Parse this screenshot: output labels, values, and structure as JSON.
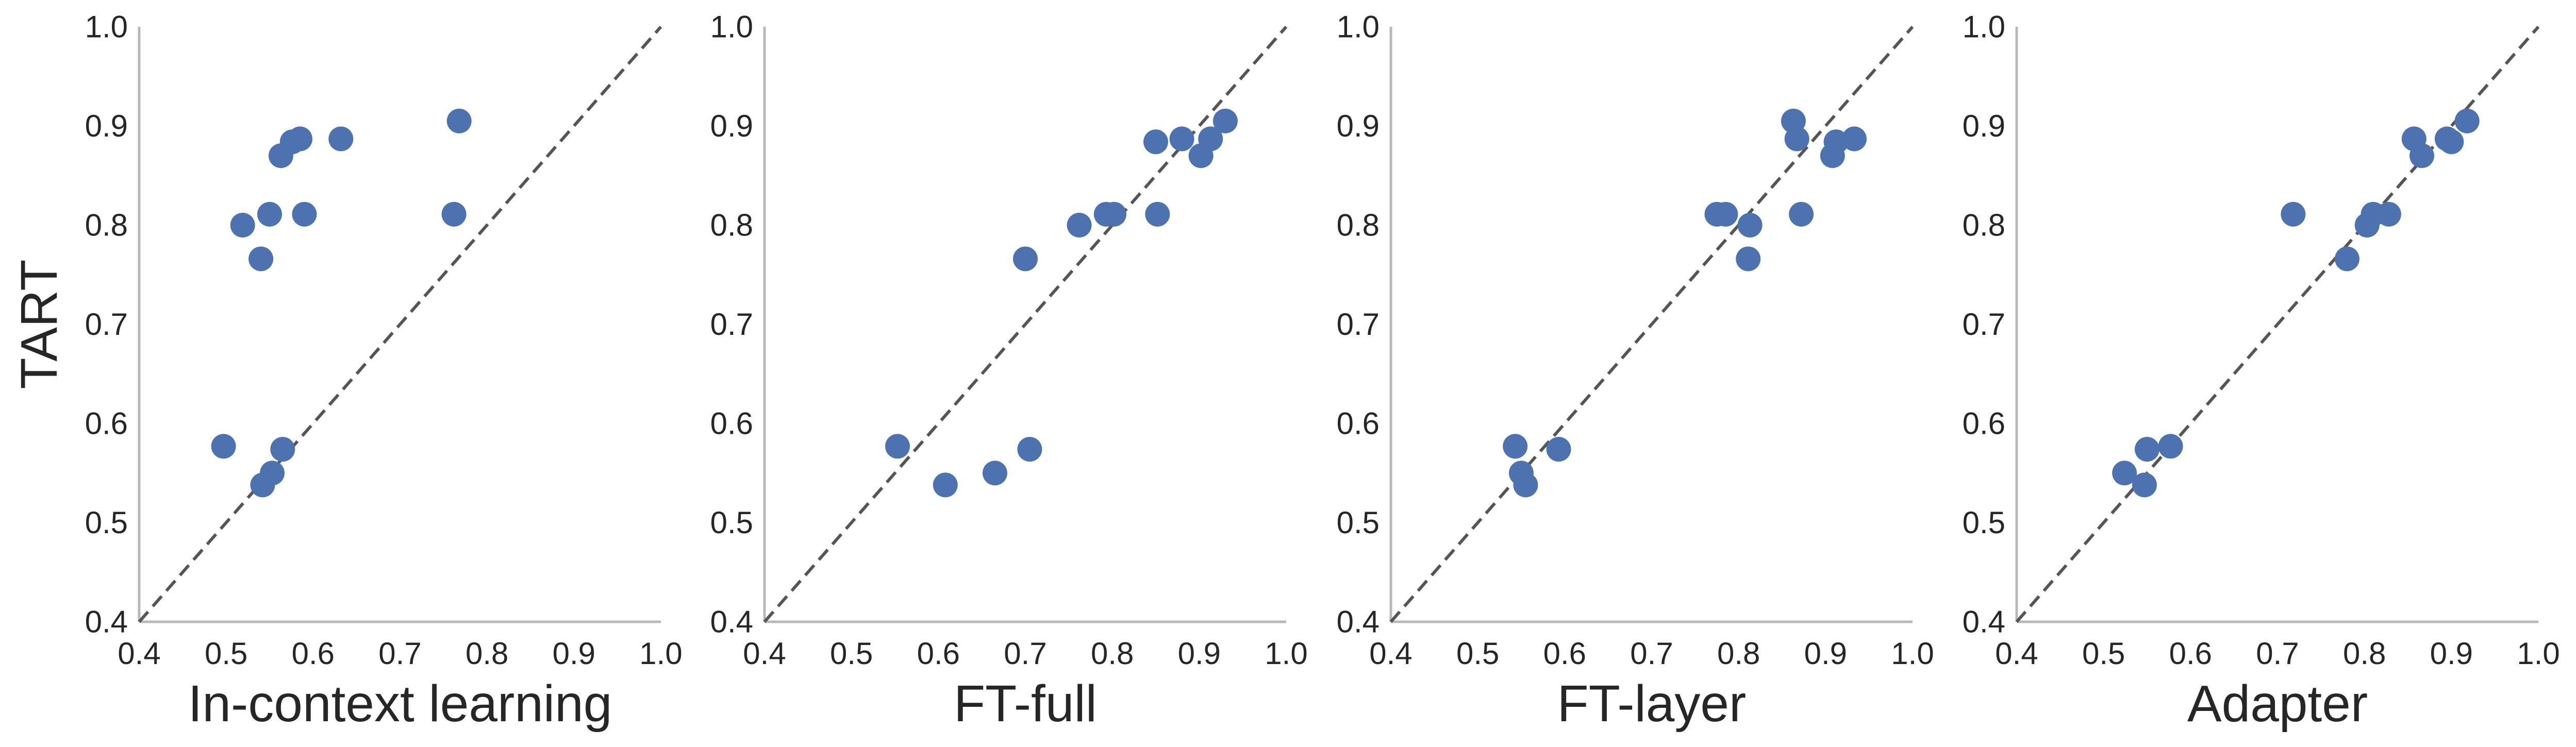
{
  "chart_data": [
    {
      "type": "scatter",
      "xlabel": "In-context learning",
      "ylabel": "TART",
      "xlim": [
        0.4,
        1.0
      ],
      "ylim": [
        0.4,
        1.0
      ],
      "xticks": [
        "0.4",
        "0.5",
        "0.6",
        "0.7",
        "0.8",
        "0.9",
        "1.0"
      ],
      "yticks": [
        "0.4",
        "0.5",
        "0.6",
        "0.7",
        "0.8",
        "0.9",
        "1.0"
      ],
      "reference_line": "y = x (dashed)",
      "grid": false,
      "point_color": "#4c72b0",
      "points": [
        {
          "x": 0.497,
          "y": 0.577
        },
        {
          "x": 0.519,
          "y": 0.8
        },
        {
          "x": 0.54,
          "y": 0.766
        },
        {
          "x": 0.542,
          "y": 0.538
        },
        {
          "x": 0.55,
          "y": 0.811
        },
        {
          "x": 0.553,
          "y": 0.55
        },
        {
          "x": 0.563,
          "y": 0.87
        },
        {
          "x": 0.565,
          "y": 0.574
        },
        {
          "x": 0.576,
          "y": 0.884
        },
        {
          "x": 0.585,
          "y": 0.887
        },
        {
          "x": 0.59,
          "y": 0.811
        },
        {
          "x": 0.632,
          "y": 0.887
        },
        {
          "x": 0.762,
          "y": 0.811
        },
        {
          "x": 0.768,
          "y": 0.905
        }
      ]
    },
    {
      "type": "scatter",
      "xlabel": "FT-full",
      "xlim": [
        0.4,
        1.0
      ],
      "ylim": [
        0.4,
        1.0
      ],
      "xticks": [
        "0.4",
        "0.5",
        "0.6",
        "0.7",
        "0.8",
        "0.9",
        "1.0"
      ],
      "yticks": [
        "0.4",
        "0.5",
        "0.6",
        "0.7",
        "0.8",
        "0.9",
        "1.0"
      ],
      "reference_line": "y = x (dashed)",
      "grid": false,
      "point_color": "#4c72b0",
      "points": [
        {
          "x": 0.553,
          "y": 0.577
        },
        {
          "x": 0.608,
          "y": 0.538
        },
        {
          "x": 0.665,
          "y": 0.55
        },
        {
          "x": 0.7,
          "y": 0.766
        },
        {
          "x": 0.705,
          "y": 0.574
        },
        {
          "x": 0.762,
          "y": 0.8
        },
        {
          "x": 0.793,
          "y": 0.811
        },
        {
          "x": 0.802,
          "y": 0.811
        },
        {
          "x": 0.85,
          "y": 0.884
        },
        {
          "x": 0.852,
          "y": 0.811
        },
        {
          "x": 0.88,
          "y": 0.887
        },
        {
          "x": 0.902,
          "y": 0.87
        },
        {
          "x": 0.913,
          "y": 0.887
        },
        {
          "x": 0.93,
          "y": 0.905
        }
      ]
    },
    {
      "type": "scatter",
      "xlabel": "FT-layer",
      "xlim": [
        0.4,
        1.0
      ],
      "ylim": [
        0.4,
        1.0
      ],
      "xticks": [
        "0.4",
        "0.5",
        "0.6",
        "0.7",
        "0.8",
        "0.9",
        "1.0"
      ],
      "yticks": [
        "0.4",
        "0.5",
        "0.6",
        "0.7",
        "0.8",
        "0.9",
        "1.0"
      ],
      "reference_line": "y = x (dashed)",
      "grid": false,
      "point_color": "#4c72b0",
      "points": [
        {
          "x": 0.543,
          "y": 0.577
        },
        {
          "x": 0.55,
          "y": 0.55
        },
        {
          "x": 0.555,
          "y": 0.538
        },
        {
          "x": 0.593,
          "y": 0.574
        },
        {
          "x": 0.775,
          "y": 0.811
        },
        {
          "x": 0.785,
          "y": 0.811
        },
        {
          "x": 0.811,
          "y": 0.766
        },
        {
          "x": 0.813,
          "y": 0.8
        },
        {
          "x": 0.863,
          "y": 0.905
        },
        {
          "x": 0.867,
          "y": 0.887
        },
        {
          "x": 0.872,
          "y": 0.811
        },
        {
          "x": 0.908,
          "y": 0.87
        },
        {
          "x": 0.912,
          "y": 0.884
        },
        {
          "x": 0.933,
          "y": 0.887
        }
      ]
    },
    {
      "type": "scatter",
      "xlabel": "Adapter",
      "xlim": [
        0.4,
        1.0
      ],
      "ylim": [
        0.4,
        1.0
      ],
      "xticks": [
        "0.4",
        "0.5",
        "0.6",
        "0.7",
        "0.8",
        "0.9",
        "1.0"
      ],
      "yticks": [
        "0.4",
        "0.5",
        "0.6",
        "0.7",
        "0.8",
        "0.9",
        "1.0"
      ],
      "reference_line": "y = x (dashed)",
      "grid": false,
      "point_color": "#4c72b0",
      "points": [
        {
          "x": 0.524,
          "y": 0.55
        },
        {
          "x": 0.547,
          "y": 0.538
        },
        {
          "x": 0.55,
          "y": 0.574
        },
        {
          "x": 0.577,
          "y": 0.577
        },
        {
          "x": 0.718,
          "y": 0.811
        },
        {
          "x": 0.78,
          "y": 0.766
        },
        {
          "x": 0.803,
          "y": 0.8
        },
        {
          "x": 0.81,
          "y": 0.811
        },
        {
          "x": 0.828,
          "y": 0.811
        },
        {
          "x": 0.857,
          "y": 0.887
        },
        {
          "x": 0.866,
          "y": 0.87
        },
        {
          "x": 0.895,
          "y": 0.887
        },
        {
          "x": 0.9,
          "y": 0.884
        },
        {
          "x": 0.918,
          "y": 0.905
        }
      ]
    }
  ]
}
